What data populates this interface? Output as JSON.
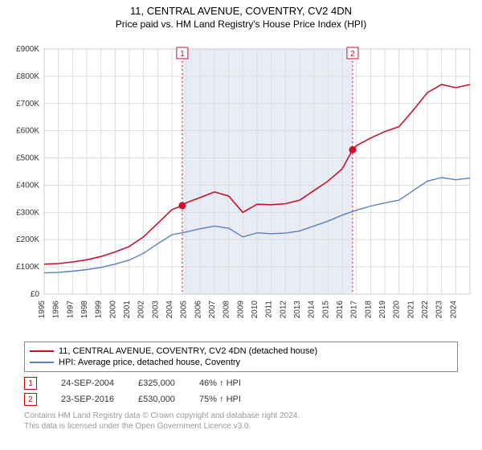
{
  "title_line1": "11, CENTRAL AVENUE, COVENTRY, CV2 4DN",
  "title_line2": "Price paid vs. HM Land Registry's House Price Index (HPI)",
  "chart": {
    "type": "line",
    "background_color": "#ffffff",
    "plot_border_color": "#cccccc",
    "grid_color": "#dddddd",
    "shaded_band_color": "#e8ecf4",
    "x_years": [
      "1995",
      "1996",
      "1997",
      "1998",
      "1999",
      "2000",
      "2001",
      "2002",
      "2003",
      "2004",
      "2005",
      "2006",
      "2007",
      "2008",
      "2009",
      "2010",
      "2011",
      "2012",
      "2013",
      "2014",
      "2015",
      "2016",
      "2017",
      "2018",
      "2019",
      "2020",
      "2021",
      "2022",
      "2023",
      "2024"
    ],
    "x_tick_fontsize": 10,
    "y_ticks": [
      0,
      100000,
      200000,
      300000,
      400000,
      500000,
      600000,
      700000,
      800000,
      900000
    ],
    "y_tick_labels": [
      "£0",
      "£100K",
      "£200K",
      "£300K",
      "£400K",
      "£500K",
      "£600K",
      "£700K",
      "£800K",
      "£900K"
    ],
    "y_tick_fontsize": 10,
    "ylim": [
      0,
      900000
    ],
    "xlim_year": [
      1995,
      2025
    ],
    "series": [
      {
        "name": "price_paid",
        "color": "#c8102e",
        "line_width": 1.6,
        "points": [
          [
            1995,
            110000
          ],
          [
            1996,
            112000
          ],
          [
            1997,
            118000
          ],
          [
            1998,
            126000
          ],
          [
            1999,
            138000
          ],
          [
            2000,
            155000
          ],
          [
            2001,
            175000
          ],
          [
            2002,
            210000
          ],
          [
            2003,
            260000
          ],
          [
            2004,
            310000
          ],
          [
            2004.73,
            325000
          ],
          [
            2005,
            335000
          ],
          [
            2006,
            355000
          ],
          [
            2007,
            375000
          ],
          [
            2008,
            360000
          ],
          [
            2009,
            300000
          ],
          [
            2010,
            330000
          ],
          [
            2011,
            328000
          ],
          [
            2012,
            332000
          ],
          [
            2013,
            345000
          ],
          [
            2014,
            380000
          ],
          [
            2015,
            415000
          ],
          [
            2016,
            460000
          ],
          [
            2016.73,
            530000
          ],
          [
            2017,
            545000
          ],
          [
            2018,
            573000
          ],
          [
            2019,
            597000
          ],
          [
            2020,
            615000
          ],
          [
            2021,
            675000
          ],
          [
            2022,
            740000
          ],
          [
            2023,
            770000
          ],
          [
            2024,
            758000
          ],
          [
            2025,
            770000
          ]
        ]
      },
      {
        "name": "hpi",
        "color": "#5b7fbf",
        "line_width": 1.4,
        "points": [
          [
            1995,
            78000
          ],
          [
            1996,
            80000
          ],
          [
            1997,
            84000
          ],
          [
            1998,
            90000
          ],
          [
            1999,
            98000
          ],
          [
            2000,
            110000
          ],
          [
            2001,
            125000
          ],
          [
            2002,
            150000
          ],
          [
            2003,
            185000
          ],
          [
            2004,
            218000
          ],
          [
            2005,
            228000
          ],
          [
            2006,
            240000
          ],
          [
            2007,
            250000
          ],
          [
            2008,
            242000
          ],
          [
            2009,
            210000
          ],
          [
            2010,
            225000
          ],
          [
            2011,
            222000
          ],
          [
            2012,
            224000
          ],
          [
            2013,
            232000
          ],
          [
            2014,
            250000
          ],
          [
            2015,
            268000
          ],
          [
            2016,
            290000
          ],
          [
            2017,
            308000
          ],
          [
            2018,
            323000
          ],
          [
            2019,
            335000
          ],
          [
            2020,
            345000
          ],
          [
            2021,
            380000
          ],
          [
            2022,
            415000
          ],
          [
            2023,
            428000
          ],
          [
            2024,
            420000
          ],
          [
            2025,
            426000
          ]
        ]
      }
    ],
    "vlines": [
      {
        "year": 2004.73,
        "label": "1",
        "color": "#c8102e"
      },
      {
        "year": 2016.73,
        "label": "2",
        "color": "#c8102e"
      }
    ],
    "marker_points": [
      {
        "year": 2004.73,
        "value": 325000,
        "color": "#c8102e"
      },
      {
        "year": 2016.73,
        "value": 530000,
        "color": "#c8102e"
      }
    ],
    "shaded_band_years": [
      2004.73,
      2016.73
    ]
  },
  "legend": {
    "items": [
      {
        "color": "#c8102e",
        "label": "11, CENTRAL AVENUE, COVENTRY, CV2 4DN (detached house)"
      },
      {
        "color": "#5b7fbf",
        "label": "HPI: Average price, detached house, Coventry"
      }
    ]
  },
  "markers_table": {
    "rows": [
      {
        "badge": "1",
        "date": "24-SEP-2004",
        "price": "£325,000",
        "pct": "46% ↑ HPI"
      },
      {
        "badge": "2",
        "date": "23-SEP-2016",
        "price": "£530,000",
        "pct": "75% ↑ HPI"
      }
    ]
  },
  "footer": {
    "line1": "Contains HM Land Registry data © Crown copyright and database right 2024.",
    "line2": "This data is licensed under the Open Government Licence v3.0."
  }
}
